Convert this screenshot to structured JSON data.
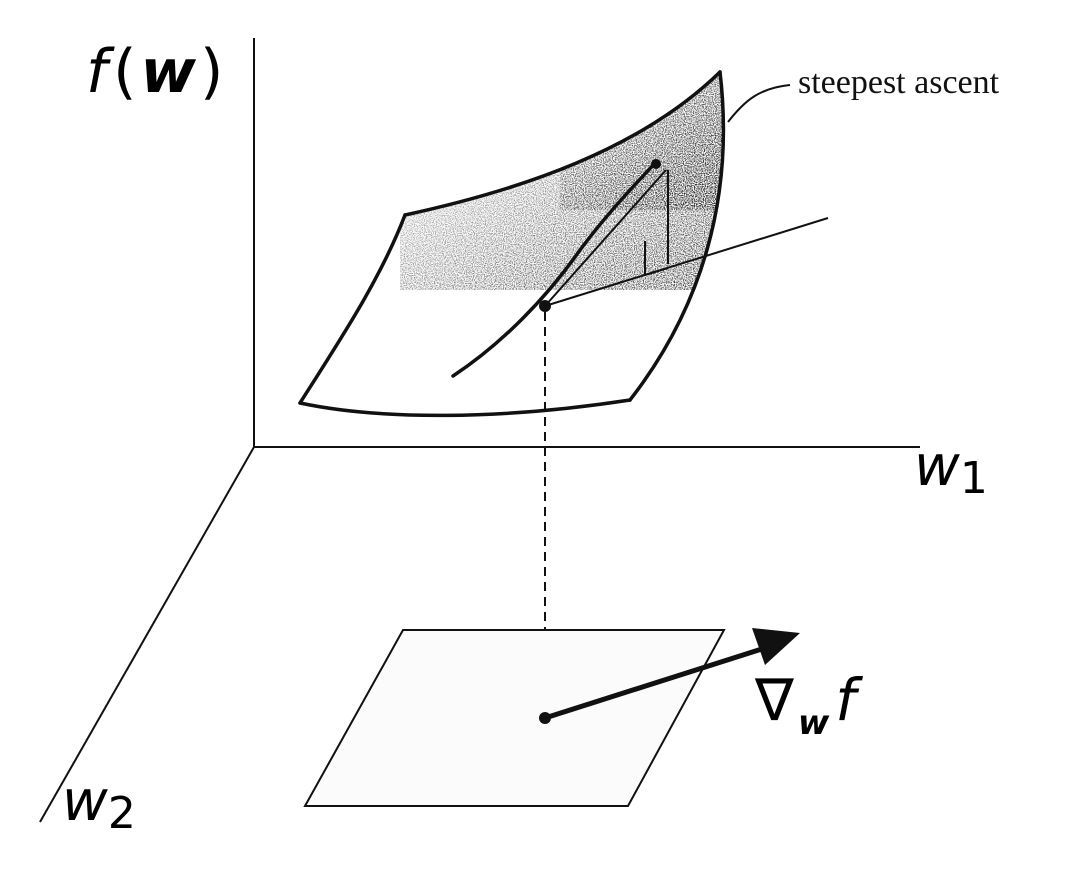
{
  "labels": {
    "f_axis": {
      "f": "f",
      "open": "(",
      "w": "w",
      "close": ")"
    },
    "w1_axis": {
      "base": "w",
      "sub": "1"
    },
    "w2_axis": {
      "base": "w",
      "sub": "2"
    },
    "steepest_ascent": "steepest ascent",
    "gradient": {
      "nabla": "∇",
      "sub": "w",
      "f": "f"
    }
  },
  "colors": {
    "ink": "#111111",
    "shading": "#333333",
    "background": "#ffffff"
  }
}
